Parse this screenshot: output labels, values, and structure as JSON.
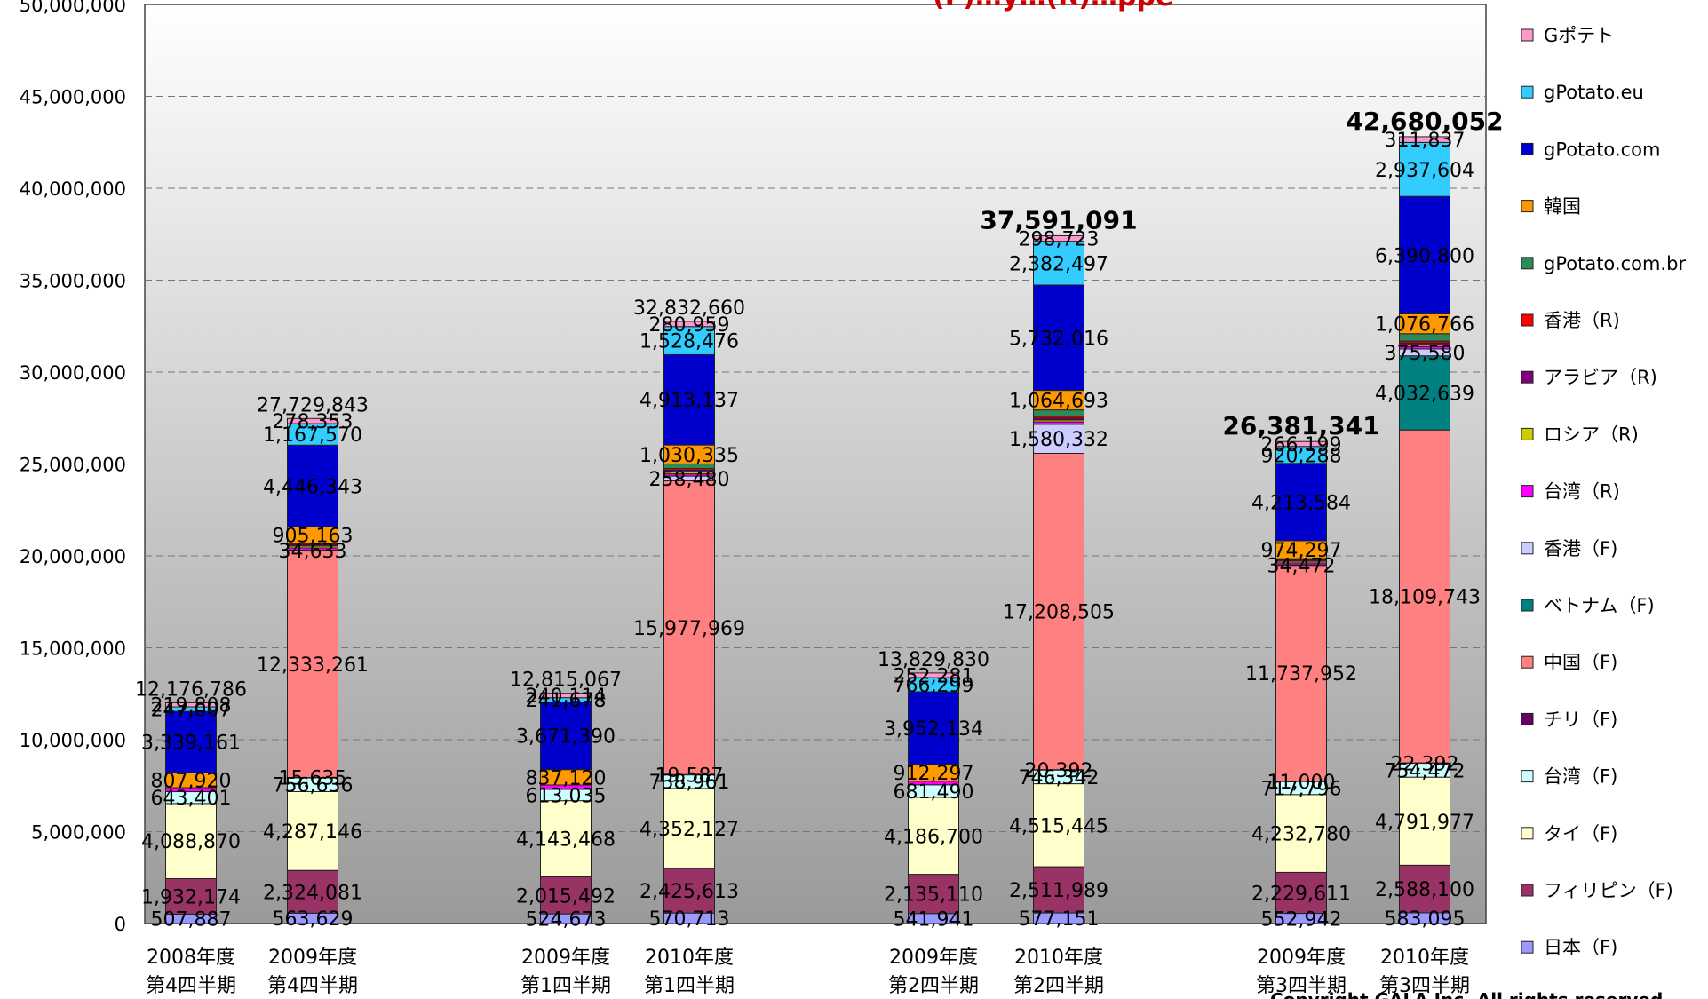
{
  "chart_data": {
    "type": "bar",
    "stacked": true,
    "title_visible": "(F)…y…(R)…ppe",
    "copyright": "Copyright GALA Inc. All rights reserved",
    "ylim": [
      0,
      50000000
    ],
    "yticks": [
      "0",
      "5,000,000",
      "10,000,000",
      "15,000,000",
      "20,000,000",
      "25,000,000",
      "30,000,000",
      "35,000,000",
      "40,000,000",
      "45,000,000",
      "50,000,000"
    ],
    "grid": "dashed-horizontal",
    "legend_position": "right",
    "categories": [
      {
        "line1": "2008年度",
        "line2": "第4四半期"
      },
      {
        "line1": "2009年度",
        "line2": "第4四半期"
      },
      {
        "line1": "2009年度",
        "line2": "第1四半期"
      },
      {
        "line1": "2010年度",
        "line2": "第1四半期"
      },
      {
        "line1": "2009年度",
        "line2": "第2四半期"
      },
      {
        "line1": "2010年度",
        "line2": "第2四半期"
      },
      {
        "line1": "2009年度",
        "line2": "第3四半期"
      },
      {
        "line1": "2010年度",
        "line2": "第3四半期"
      }
    ],
    "totals": [
      {
        "label": "12,176,786",
        "bold": false
      },
      {
        "label": "27,729,843",
        "bold": false
      },
      {
        "label": "12,815,067",
        "bold": false
      },
      {
        "label": "32,832,660",
        "bold": false
      },
      {
        "label": "13,829,830",
        "bold": false
      },
      {
        "label": "37,591,091",
        "bold": true
      },
      {
        "label": "26,381,341",
        "bold": true
      },
      {
        "label": "42,680,052",
        "bold": true
      }
    ],
    "series": [
      {
        "name": "日本（F)",
        "color": "#9999ff",
        "values": [
          507887,
          563629,
          524673,
          570713,
          541941,
          577151,
          552942,
          583095
        ],
        "labels": [
          "507,887",
          "563,629",
          "524,673",
          "570,713",
          "541,941",
          "577,151",
          "552,942",
          "583,095"
        ]
      },
      {
        "name": "フィリピン（F)",
        "color": "#993366",
        "values": [
          1932174,
          2324081,
          2015492,
          2425613,
          2135110,
          2511989,
          2229611,
          2588100
        ],
        "labels": [
          "1,932,174",
          "2,324,081",
          "2,015,492",
          "2,425,613",
          "2,135,110",
          "2,511,989",
          "2,229,611",
          "2,588,100"
        ]
      },
      {
        "name": "タイ（F)",
        "color": "#ffffcc",
        "values": [
          4088870,
          4287146,
          4143468,
          4352127,
          4186700,
          4515445,
          4232780,
          4791977
        ],
        "labels": [
          "4,088,870",
          "4,287,146",
          "4,143,468",
          "4,352,127",
          "4,186,700",
          "4,515,445",
          "4,232,780",
          "4,791,977"
        ]
      },
      {
        "name": "台湾（F)",
        "color": "#ccffff",
        "values": [
          643401,
          756636,
          613035,
          738961,
          681490,
          746342,
          717796,
          754472
        ],
        "labels": [
          "643,401",
          "756,636",
          "613,035",
          "738,961",
          "681,490",
          "746,342",
          "717,796",
          "754,472"
        ]
      },
      {
        "name": "チリ（F)",
        "color": "#660066",
        "values": [
          0,
          15635,
          0,
          19587,
          0,
          20392,
          11000,
          22392
        ],
        "labels": [
          "",
          "15,635",
          "",
          "19,587",
          "",
          "20,392",
          "11,000",
          "22,392"
        ]
      },
      {
        "name": "中国（F)",
        "color": "#ff8080",
        "values": [
          0,
          12333261,
          0,
          15977969,
          0,
          17208505,
          11737952,
          18109743
        ],
        "labels": [
          "",
          "12,333,261",
          "",
          "15,977,969",
          "",
          "17,208,505",
          "11,737,952",
          "18,109,743"
        ]
      },
      {
        "name": "ベトナム（F)",
        "color": "#008080",
        "values": [
          0,
          0,
          0,
          0,
          0,
          0,
          0,
          4032639
        ],
        "labels": [
          "",
          "",
          "",
          "",
          "",
          "",
          "",
          "4,032,639"
        ]
      },
      {
        "name": "香港（F)",
        "color": "#ccccff",
        "values": [
          0,
          34633,
          0,
          258480,
          0,
          1580332,
          34472,
          375580
        ],
        "labels": [
          "",
          "34,633",
          "",
          "258,480",
          "",
          "1,580,332",
          "34,472",
          "375,580"
        ]
      },
      {
        "name": "台湾（R)",
        "color": "#ff00ff",
        "values": [
          220000,
          120000,
          240000,
          120000,
          200000,
          130000,
          100000,
          130000
        ],
        "labels": [
          "",
          "",
          "",
          "",
          "",
          "",
          "",
          ""
        ]
      },
      {
        "name": "ロシア（R)",
        "color": "#cccc00",
        "values": [
          0,
          100000,
          0,
          100000,
          0,
          100000,
          90000,
          100000
        ],
        "labels": [
          "",
          "",
          "",
          "",
          "",
          "",
          "",
          ""
        ]
      },
      {
        "name": "アラビア（R)",
        "color": "#800080",
        "values": [
          0,
          80000,
          0,
          100000,
          0,
          100000,
          80000,
          100000
        ],
        "labels": [
          "",
          "",
          "",
          "",
          "",
          "",
          "",
          ""
        ]
      },
      {
        "name": "香港（R)",
        "color": "#ff0000",
        "values": [
          0,
          60000,
          0,
          90000,
          0,
          100000,
          60000,
          100000
        ],
        "labels": [
          "",
          "",
          "",
          "",
          "",
          "",
          "",
          ""
        ]
      },
      {
        "name": "gPotato.com.br",
        "color": "#2e8b57",
        "values": [
          0,
          0,
          0,
          250000,
          0,
          350000,
          0,
          400000
        ],
        "labels": [
          "",
          "",
          "",
          "",
          "",
          "",
          "",
          ""
        ]
      },
      {
        "name": "韓国",
        "color": "#ff9900",
        "values": [
          807920,
          905163,
          837120,
          1030335,
          912297,
          1064693,
          974297,
          1076766
        ],
        "labels": [
          "807,920",
          "905,163",
          "837,120",
          "1,030,335",
          "912,297",
          "1,064,693",
          "974,297",
          "1,076,766"
        ]
      },
      {
        "name": "gPotato.com",
        "color": "#0000cc",
        "values": [
          3339161,
          4446343,
          3671390,
          4913137,
          3952134,
          5732016,
          4213584,
          6390800
        ],
        "labels": [
          "3,339,161",
          "4,446,343",
          "3,671,390",
          "4,913,137",
          "3,952,134",
          "5,732,016",
          "4,213,584",
          "6,390,800"
        ]
      },
      {
        "name": "gPotato.eu",
        "color": "#33ccff",
        "values": [
          247007,
          1167570,
          241678,
          1528476,
          766299,
          2382497,
          920288,
          2937604
        ],
        "labels": [
          "247,007",
          "1,167,570",
          "241,678",
          "1,528,476",
          "766,299",
          "2,382,497",
          "920,288",
          "2,937,604"
        ]
      },
      {
        "name": "Gポテト",
        "color": "#ff99cc",
        "values": [
          219808,
          278353,
          240114,
          280959,
          252281,
          298723,
          266199,
          311837
        ],
        "labels": [
          "219,808",
          "278,353",
          "240,114",
          "280,959",
          "252,281",
          "298,723",
          "266,199",
          "311,837"
        ]
      }
    ]
  }
}
